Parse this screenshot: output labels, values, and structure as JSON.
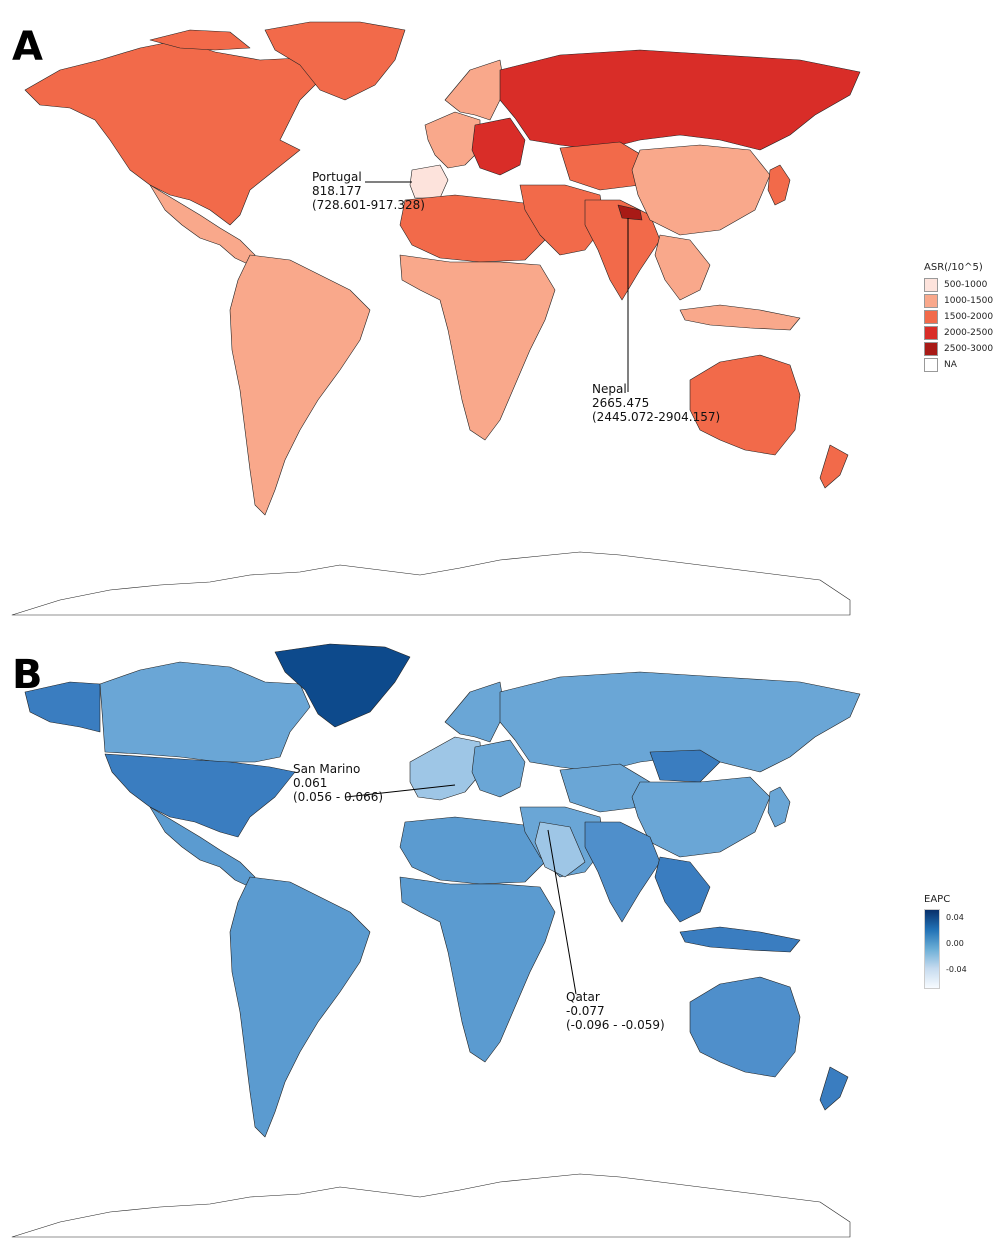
{
  "panel_a": {
    "label": "A",
    "legend": {
      "title": "ASR(/10^5)",
      "items": [
        {
          "label": "500-1000",
          "color": "#fde3dc"
        },
        {
          "label": "1000-1500",
          "color": "#f9a88b"
        },
        {
          "label": "1500-2000",
          "color": "#f26a4a"
        },
        {
          "label": "2000-2500",
          "color": "#d92d28"
        },
        {
          "label": "2500-3000",
          "color": "#a81a16"
        },
        {
          "label": "NA",
          "color": "#ffffff"
        }
      ]
    },
    "annotations": [
      {
        "name": "Portugal",
        "value": "818.177",
        "ci": "(728.601-917.328)"
      },
      {
        "name": "Nepal",
        "value": "2665.475",
        "ci": "(2445.072-2904.157)"
      }
    ],
    "region_colors": {
      "north_america": "#f26a4a",
      "greenland": "#f26a4a",
      "latin_america": "#f9a88b",
      "africa": "#f9a88b",
      "north_africa": "#f26a4a",
      "western_europe": "#f9a88b",
      "iberia": "#fde3dc",
      "eastern_europe": "#d92d28",
      "russia": "#d92d28",
      "central_asia": "#f26a4a",
      "middle_east": "#f26a4a",
      "south_asia": "#f26a4a",
      "nepal": "#a81a16",
      "china": "#f9a88b",
      "southeast_asia": "#f9a88b",
      "australia": "#f26a4a",
      "new_zealand": "#f26a4a",
      "japan": "#f26a4a"
    }
  },
  "panel_b": {
    "label": "B",
    "legend": {
      "title": "EAPC",
      "ticks": [
        "0.04",
        "0.00",
        "-0.04"
      ],
      "gradient": [
        "#08306b",
        "#2171b5",
        "#6baed6",
        "#c6dbef",
        "#f7fbff"
      ]
    },
    "annotations": [
      {
        "name": "San Marino",
        "value": "0.061",
        "ci": "(0.056 - 0.066)"
      },
      {
        "name": "Qatar",
        "value": "-0.077",
        "ci": "(-0.096 - -0.059)"
      }
    ],
    "region_colors": {
      "north_america": "#3a7dc0",
      "alaska": "#3a7dc0",
      "canada": "#6aa6d6",
      "greenland": "#0d4a8c",
      "latin_america": "#5b9bd0",
      "africa": "#5b9bd0",
      "north_africa": "#5b9bd0",
      "western_europe": "#9ec6e6",
      "eastern_europe": "#6aa6d6",
      "russia": "#6aa6d6",
      "central_asia": "#6aa6d6",
      "mongolia": "#3a7dc0",
      "middle_east": "#6aa6d6",
      "south_asia": "#4f8fcb",
      "china": "#6aa6d6",
      "southeast_asia": "#3a7dc0",
      "australia": "#4f8fcb",
      "new_zealand": "#3a7dc0",
      "japan": "#6aa6d6",
      "arabia": "#9ec6e6"
    }
  }
}
